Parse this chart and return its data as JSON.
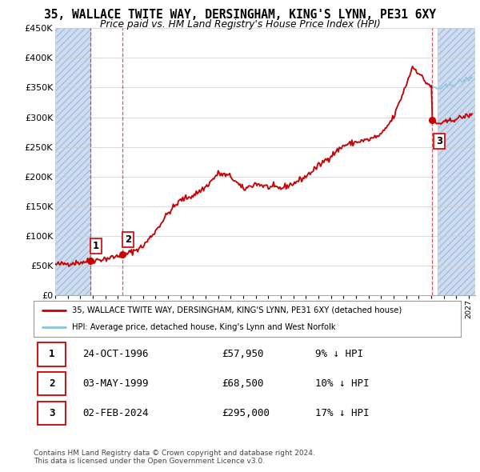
{
  "title_line1": "35, WALLACE TWITE WAY, DERSINGHAM, KING'S LYNN, PE31 6XY",
  "title_line2": "Price paid vs. HM Land Registry's House Price Index (HPI)",
  "ylim": [
    0,
    450000
  ],
  "yticks": [
    0,
    50000,
    100000,
    150000,
    200000,
    250000,
    300000,
    350000,
    400000,
    450000
  ],
  "ytick_labels": [
    "£0",
    "£50K",
    "£100K",
    "£150K",
    "£200K",
    "£250K",
    "£300K",
    "£350K",
    "£400K",
    "£450K"
  ],
  "sale_year_floats": [
    1996.8,
    1999.33,
    2024.08
  ],
  "sale_prices": [
    57950,
    68500,
    295000
  ],
  "sale_labels": [
    "1",
    "2",
    "3"
  ],
  "hpi_color": "#89c4e0",
  "price_color": "#cc0000",
  "vline_color": "#cc0000",
  "hatch_color": "#ccddf0",
  "legend_label_price": "35, WALLACE TWITE WAY, DERSINGHAM, KING'S LYNN, PE31 6XY (detached house)",
  "legend_label_hpi": "HPI: Average price, detached house, King's Lynn and West Norfolk",
  "table_data": [
    [
      "1",
      "24-OCT-1996",
      "£57,950",
      "9% ↓ HPI"
    ],
    [
      "2",
      "03-MAY-1999",
      "£68,500",
      "10% ↓ HPI"
    ],
    [
      "3",
      "02-FEB-2024",
      "£295,000",
      "17% ↓ HPI"
    ]
  ],
  "footnote": "Contains HM Land Registry data © Crown copyright and database right 2024.\nThis data is licensed under the Open Government Licence v3.0.",
  "hpi_anchors": {
    "1994.0": 50000,
    "1995.0": 52000,
    "1996.0": 54000,
    "1997.0": 57000,
    "1998.0": 60000,
    "1999.0": 64000,
    "2000.0": 72000,
    "2001.0": 82000,
    "2002.0": 108000,
    "2003.0": 138000,
    "2004.0": 160000,
    "2005.0": 168000,
    "2006.0": 182000,
    "2007.0": 205000,
    "2008.0": 200000,
    "2009.0": 178000,
    "2010.0": 188000,
    "2011.0": 182000,
    "2012.0": 180000,
    "2013.0": 188000,
    "2014.0": 200000,
    "2015.0": 218000,
    "2016.0": 235000,
    "2017.0": 252000,
    "2018.0": 258000,
    "2019.0": 262000,
    "2020.0": 270000,
    "2021.0": 300000,
    "2022.0": 355000,
    "2022.5": 385000,
    "2023.0": 375000,
    "2023.5": 360000,
    "2024.0": 352000,
    "2024.5": 348000,
    "2025.0": 350000,
    "2026.0": 358000,
    "2027.0": 365000
  }
}
